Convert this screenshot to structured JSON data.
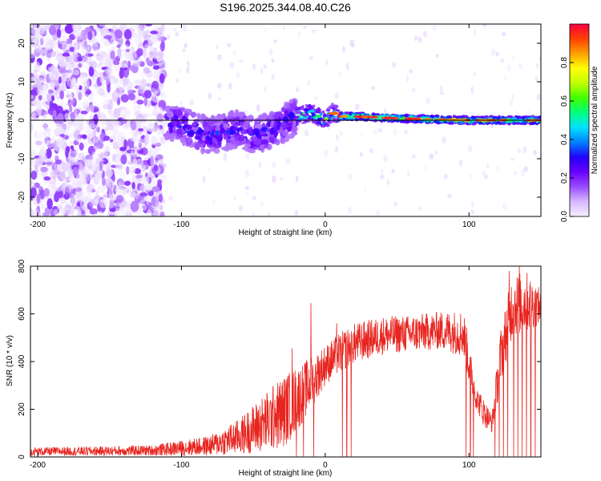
{
  "title": "S196.2025.344.08.40.C26",
  "chart_data": [
    {
      "type": "heatmap",
      "title": "S196.2025.344.08.40.C26",
      "xlabel": "Height of straight line (km)",
      "ylabel": "Frequency (Hz)",
      "xlim": [
        -205,
        150
      ],
      "ylim": [
        -25,
        25
      ],
      "x_ticks": [
        -200,
        -100,
        0,
        100
      ],
      "y_ticks": [
        -20,
        -10,
        0,
        10,
        20
      ],
      "grid": false,
      "colorbar": {
        "label": "Normalized spectral amplitude",
        "range": [
          0,
          1
        ],
        "ticks": [
          "0.0",
          "0.2",
          "0.4",
          "0.6",
          "0.8"
        ],
        "tick_values": [
          0,
          0.2,
          0.4,
          0.6,
          0.8
        ],
        "colormap": [
          "#f5f0ff",
          "#d8b8ff",
          "#9a4cff",
          "#6a00ff",
          "#2200ff",
          "#0080ff",
          "#00e0ff",
          "#00ff80",
          "#40ff00",
          "#c0ff00",
          "#ffff00",
          "#ffa000",
          "#ff4000",
          "#ff0040"
        ]
      },
      "frequency_track": [
        {
          "x": -110,
          "y": 0
        },
        {
          "x": -100,
          "y": -1
        },
        {
          "x": -90,
          "y": -3
        },
        {
          "x": -80,
          "y": -4
        },
        {
          "x": -70,
          "y": -3
        },
        {
          "x": -60,
          "y": -2
        },
        {
          "x": -50,
          "y": -4
        },
        {
          "x": -40,
          "y": -3
        },
        {
          "x": -30,
          "y": -1
        },
        {
          "x": -20,
          "y": 1
        },
        {
          "x": -10,
          "y": 2
        },
        {
          "x": 0,
          "y": 0
        },
        {
          "x": 5,
          "y": 2
        },
        {
          "x": 10,
          "y": 1
        },
        {
          "x": 20,
          "y": 1
        },
        {
          "x": 50,
          "y": 0.5
        },
        {
          "x": 100,
          "y": 0
        },
        {
          "x": 150,
          "y": 0
        }
      ],
      "reference_line_y": 0
    },
    {
      "type": "line",
      "xlabel": "Height of straight line (km)",
      "ylabel": "SNR (10 * v/v)",
      "xlim": [
        -205,
        150
      ],
      "ylim": [
        0,
        800
      ],
      "x_ticks": [
        -200,
        -100,
        0,
        100
      ],
      "y_ticks": [
        0,
        200,
        400,
        600,
        800
      ],
      "grid": false,
      "series": [
        {
          "color": "#e8241e",
          "envelope": [
            {
              "x": -205,
              "low": 5,
              "high": 40
            },
            {
              "x": -150,
              "low": 5,
              "high": 45
            },
            {
              "x": -120,
              "low": 5,
              "high": 50
            },
            {
              "x": -100,
              "low": 5,
              "high": 70
            },
            {
              "x": -80,
              "low": 5,
              "high": 90
            },
            {
              "x": -60,
              "low": 10,
              "high": 160
            },
            {
              "x": -40,
              "low": 20,
              "high": 280
            },
            {
              "x": -30,
              "low": 30,
              "high": 340
            },
            {
              "x": -20,
              "low": 100,
              "high": 380
            },
            {
              "x": -10,
              "low": 200,
              "high": 420
            },
            {
              "x": 0,
              "low": 300,
              "high": 470
            },
            {
              "x": 10,
              "low": 350,
              "high": 520
            },
            {
              "x": 20,
              "low": 390,
              "high": 560
            },
            {
              "x": 40,
              "low": 430,
              "high": 590
            },
            {
              "x": 60,
              "low": 440,
              "high": 595
            },
            {
              "x": 80,
              "low": 450,
              "high": 610
            },
            {
              "x": 96,
              "low": 420,
              "high": 620
            },
            {
              "x": 100,
              "low": 300,
              "high": 500
            },
            {
              "x": 105,
              "low": 200,
              "high": 300
            },
            {
              "x": 110,
              "low": 130,
              "high": 250
            },
            {
              "x": 116,
              "low": 100,
              "high": 180
            },
            {
              "x": 122,
              "low": 300,
              "high": 540
            },
            {
              "x": 130,
              "low": 500,
              "high": 770
            },
            {
              "x": 140,
              "low": 520,
              "high": 780
            },
            {
              "x": 150,
              "low": 560,
              "high": 700
            }
          ],
          "spikes": [
            {
              "x": -10,
              "y": 645
            },
            {
              "x": -23,
              "y": 455
            },
            {
              "x": -30,
              "y": 300
            },
            {
              "x": -35,
              "y": 240
            },
            {
              "x": 8,
              "y": 560
            },
            {
              "x": 135,
              "y": 800
            },
            {
              "x": 128,
              "y": 780
            }
          ],
          "dropouts": [
            -20,
            -15,
            -8,
            12,
            15,
            18,
            98,
            101,
            103,
            118,
            121,
            124,
            127,
            131,
            134,
            137,
            140,
            143,
            146
          ]
        }
      ]
    }
  ]
}
